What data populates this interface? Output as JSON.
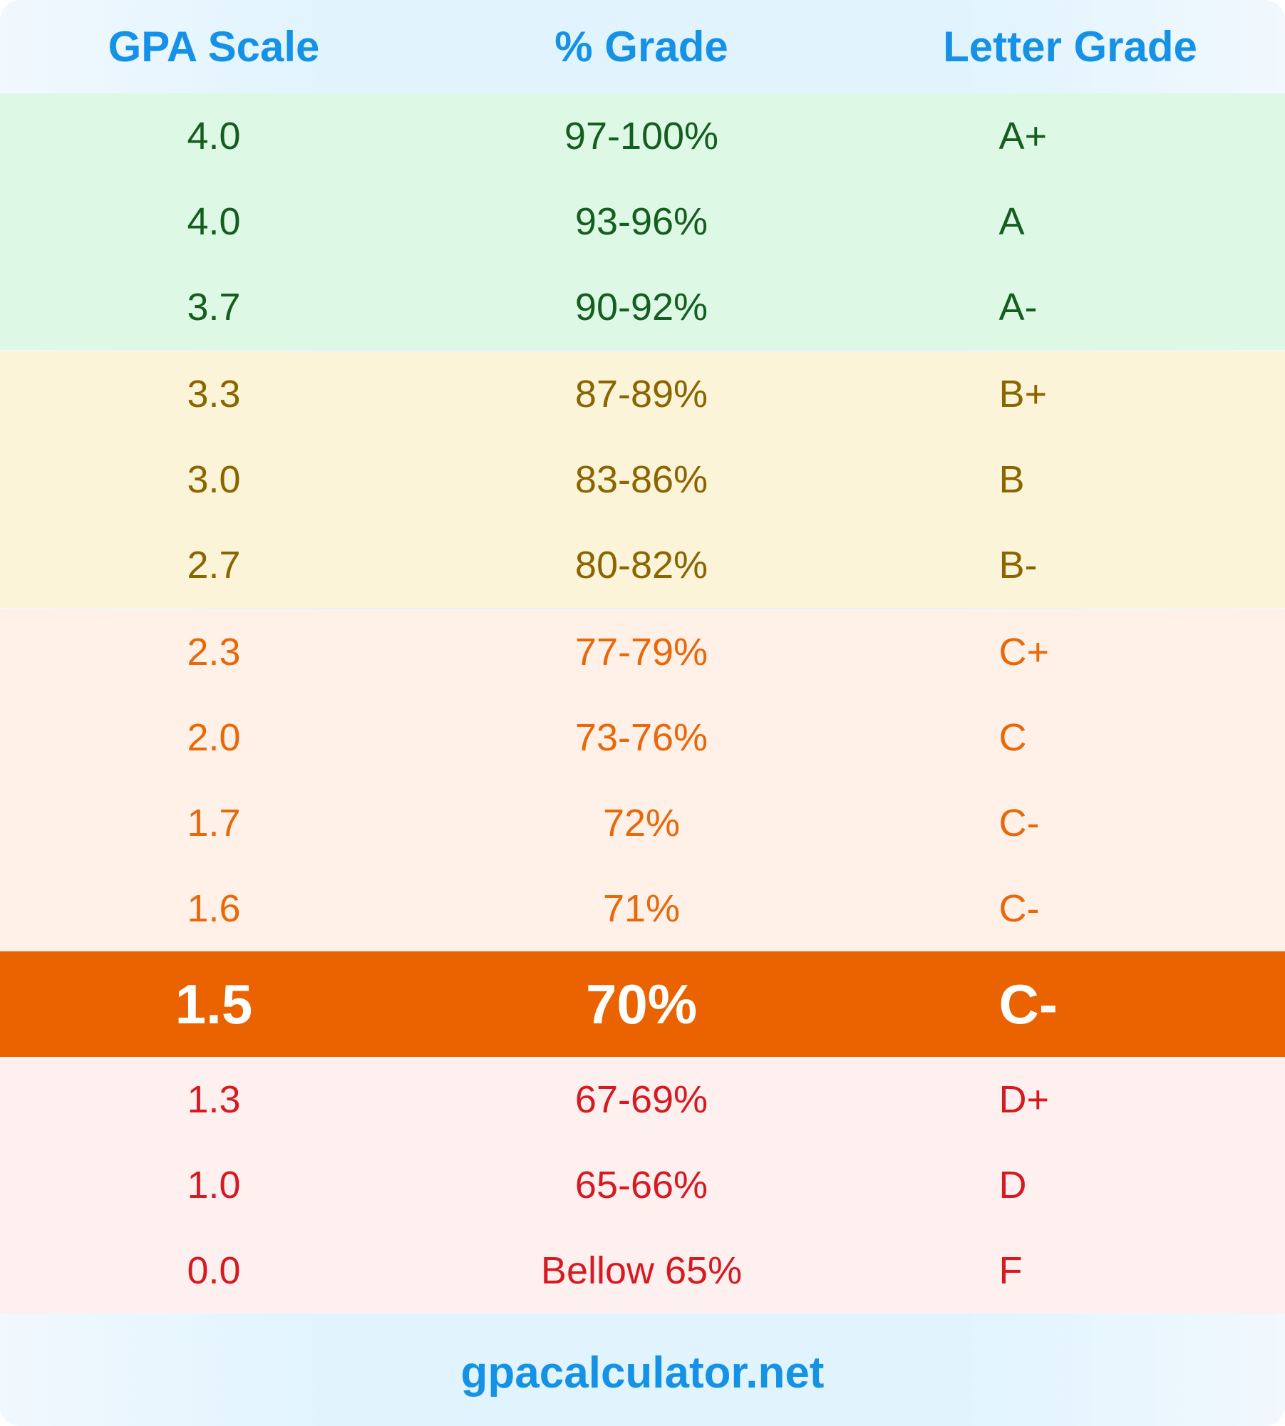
{
  "header": {
    "gpa": "GPA Scale",
    "percent": "% Grade",
    "letter": "Letter Grade"
  },
  "groups": [
    {
      "name": "A",
      "rows": [
        {
          "gpa": "4.0",
          "percent": "97-100%",
          "letter": "A+"
        },
        {
          "gpa": "4.0",
          "percent": "93-96%",
          "letter": "A"
        },
        {
          "gpa": "3.7",
          "percent": "90-92%",
          "letter": "A-"
        }
      ]
    },
    {
      "name": "B",
      "rows": [
        {
          "gpa": "3.3",
          "percent": "87-89%",
          "letter": "B+"
        },
        {
          "gpa": "3.0",
          "percent": "83-86%",
          "letter": "B"
        },
        {
          "gpa": "2.7",
          "percent": "80-82%",
          "letter": "B-"
        }
      ]
    },
    {
      "name": "C",
      "rows": [
        {
          "gpa": "2.3",
          "percent": "77-79%",
          "letter": "C+"
        },
        {
          "gpa": "2.0",
          "percent": "73-76%",
          "letter": "C"
        },
        {
          "gpa": "1.7",
          "percent": "72%",
          "letter": "C-"
        },
        {
          "gpa": "1.6",
          "percent": "71%",
          "letter": "C-"
        }
      ]
    },
    {
      "name": "highlight",
      "rows": [
        {
          "gpa": "1.5",
          "percent": "70%",
          "letter": "C-"
        }
      ]
    },
    {
      "name": "D",
      "rows": [
        {
          "gpa": "1.3",
          "percent": "67-69%",
          "letter": "D+"
        },
        {
          "gpa": "1.0",
          "percent": "65-66%",
          "letter": "D"
        },
        {
          "gpa": "0.0",
          "percent": "Bellow 65%",
          "letter": "F"
        }
      ]
    }
  ],
  "footer": {
    "site": "gpacalculator.net"
  },
  "colors": {
    "header": "#1592e6",
    "green": "#155e20",
    "yellow": "#8a6500",
    "orange": "#e8680a",
    "highlight_bg": "#eb6200",
    "red": "#d61a22"
  }
}
